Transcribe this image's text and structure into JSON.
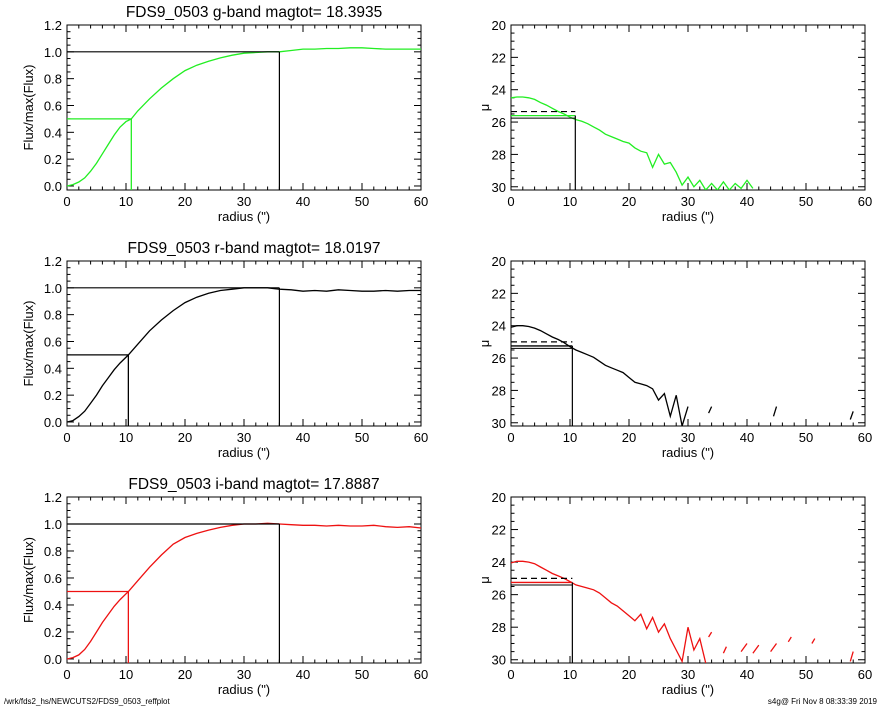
{
  "footer": {
    "path": "/wrk/fds2_hs/NEWCUTS2/FDS9_0503_reffplot",
    "stamp": "s4g@  Fri Nov  8 08:33:39 2019"
  },
  "chart_data": [
    {
      "type": "line",
      "panel": "growth-curve-g",
      "title": "FDS9_0503 g-band  magtot=      18.3935",
      "xlabel": "radius (\")",
      "ylabel": "Flux/max(Flux)",
      "xlim": [
        0,
        60
      ],
      "ylim": [
        -0.03,
        1.2
      ],
      "xticks": [
        0,
        10,
        20,
        30,
        40,
        50,
        60
      ],
      "yticks": [
        "0.0",
        "0.2",
        "0.4",
        "0.6",
        "0.8",
        "1.0",
        "1.2"
      ],
      "color": "#22ee22",
      "series": [
        {
          "x": [
            0,
            1,
            2,
            3,
            4,
            5,
            6,
            7,
            8,
            9,
            10,
            10.9,
            12,
            14,
            16,
            18,
            20,
            22,
            24,
            26,
            28,
            30,
            32,
            34,
            36,
            38,
            40,
            42,
            44,
            46,
            48,
            50,
            52,
            54,
            56,
            58,
            60
          ],
          "y": [
            0.0,
            0.01,
            0.03,
            0.06,
            0.11,
            0.17,
            0.24,
            0.31,
            0.38,
            0.44,
            0.48,
            0.5,
            0.56,
            0.65,
            0.73,
            0.8,
            0.86,
            0.9,
            0.93,
            0.955,
            0.975,
            0.99,
            0.995,
            1.0,
            1.0,
            1.01,
            1.02,
            1.02,
            1.025,
            1.025,
            1.03,
            1.03,
            1.025,
            1.02,
            1.02,
            1.02,
            1.02
          ]
        }
      ],
      "markers": {
        "half_radius": 10.9,
        "half_level": 0.5,
        "total_radius": 36.0,
        "total_level": 1.0
      }
    },
    {
      "type": "line",
      "panel": "sb-profile-g",
      "xlabel": "radius (\")",
      "ylabel": "μ",
      "xlim": [
        0,
        60
      ],
      "ylim": [
        30.2,
        20
      ],
      "xticks": [
        0,
        10,
        20,
        30,
        40,
        50,
        60
      ],
      "yticks": [
        "20",
        "22",
        "24",
        "26",
        "28",
        "30"
      ],
      "color": "#22ee22",
      "series": [
        {
          "x": [
            0,
            1,
            2,
            3,
            4,
            5,
            6,
            7,
            8,
            9,
            10,
            11,
            12,
            13,
            14,
            15,
            16,
            17,
            18,
            19,
            20,
            21,
            22,
            23,
            24,
            25,
            26,
            27,
            28,
            29,
            30,
            31,
            32,
            33,
            34,
            35,
            36,
            37,
            38,
            39,
            40,
            41
          ],
          "y": [
            24.5,
            24.45,
            24.45,
            24.5,
            24.6,
            24.8,
            24.95,
            25.15,
            25.35,
            25.5,
            25.7,
            25.85,
            25.95,
            26.1,
            26.3,
            26.5,
            26.75,
            26.9,
            27.05,
            27.2,
            27.3,
            27.6,
            27.8,
            27.9,
            28.8,
            28.0,
            28.6,
            28.5,
            29.1,
            29.9,
            29.4,
            30.0,
            29.6,
            30.2,
            29.8,
            30.2,
            29.7,
            30.2,
            29.8,
            30.1,
            29.6,
            30.1
          ]
        }
      ],
      "markers": {
        "half_radius": 10.9,
        "half_mu": 25.6,
        "dashed_mu": 25.35
      }
    },
    {
      "type": "line",
      "panel": "growth-curve-r",
      "title": "FDS9_0503 r-band  magtot=      18.0197",
      "xlabel": "radius (\")",
      "ylabel": "Flux/max(Flux)",
      "xlim": [
        0,
        60
      ],
      "ylim": [
        -0.03,
        1.2
      ],
      "xticks": [
        0,
        10,
        20,
        30,
        40,
        50,
        60
      ],
      "yticks": [
        "0.0",
        "0.2",
        "0.4",
        "0.6",
        "0.8",
        "1.0",
        "1.2"
      ],
      "color": "#000000",
      "series": [
        {
          "x": [
            0,
            1,
            2,
            3,
            4,
            5,
            6,
            7,
            8,
            9,
            10.4,
            12,
            14,
            16,
            18,
            20,
            22,
            24,
            26,
            28,
            30,
            32,
            34,
            36,
            38,
            40,
            42,
            44,
            46,
            48,
            50,
            52,
            54,
            56,
            58,
            60
          ],
          "y": [
            0.0,
            0.01,
            0.04,
            0.08,
            0.14,
            0.2,
            0.27,
            0.33,
            0.39,
            0.44,
            0.5,
            0.58,
            0.68,
            0.76,
            0.83,
            0.89,
            0.93,
            0.96,
            0.98,
            0.99,
            1.0,
            1.0,
            1.0,
            0.99,
            0.985,
            0.975,
            0.98,
            0.975,
            0.985,
            0.98,
            0.975,
            0.975,
            0.98,
            0.975,
            0.98,
            0.98
          ]
        }
      ],
      "markers": {
        "half_radius": 10.4,
        "half_level": 0.5,
        "total_radius": 36.0,
        "total_level": 1.0
      }
    },
    {
      "type": "line",
      "panel": "sb-profile-r",
      "xlabel": "radius (\")",
      "ylabel": "μ",
      "xlim": [
        0,
        60
      ],
      "ylim": [
        30.2,
        20
      ],
      "xticks": [
        0,
        10,
        20,
        30,
        40,
        50,
        60
      ],
      "yticks": [
        "20",
        "22",
        "24",
        "26",
        "28",
        "30"
      ],
      "color": "#000000",
      "series": [
        {
          "x": [
            0,
            1,
            2,
            3,
            4,
            5,
            6,
            7,
            8,
            9,
            10,
            11,
            12,
            13,
            14,
            15,
            16,
            17,
            18,
            19,
            20,
            21,
            22,
            23,
            24,
            25,
            26,
            27,
            28,
            29,
            30
          ],
          "y": [
            24.1,
            24.0,
            24.0,
            24.05,
            24.15,
            24.3,
            24.5,
            24.7,
            24.85,
            25.05,
            25.3,
            25.5,
            25.65,
            25.8,
            25.95,
            26.2,
            26.45,
            26.6,
            26.75,
            26.9,
            27.2,
            27.5,
            27.6,
            27.7,
            27.9,
            28.6,
            28.2,
            29.6,
            28.3,
            30.2,
            29.0
          ]
        },
        {
          "x": [
            33.5,
            34,
            44.5,
            45,
            57.5,
            58
          ],
          "y": [
            29.4,
            29.0,
            29.6,
            29.0,
            29.8,
            29.3
          ]
        }
      ],
      "markers": {
        "half_radius": 10.4,
        "half_mu": 25.25,
        "dashed_mu": 25.0
      }
    },
    {
      "type": "line",
      "panel": "growth-curve-i",
      "title": "FDS9_0503 i-band  magtot=      17.8887",
      "xlabel": "radius (\")",
      "ylabel": "Flux/max(Flux)",
      "xlim": [
        0,
        60
      ],
      "ylim": [
        -0.03,
        1.2
      ],
      "xticks": [
        0,
        10,
        20,
        30,
        40,
        50,
        60
      ],
      "yticks": [
        "0.0",
        "0.2",
        "0.4",
        "0.6",
        "0.8",
        "1.0",
        "1.2"
      ],
      "color": "#ee1111",
      "series": [
        {
          "x": [
            0,
            1,
            2,
            3,
            4,
            5,
            6,
            7,
            8,
            9,
            10.4,
            12,
            14,
            16,
            18,
            20,
            22,
            24,
            26,
            28,
            30,
            32,
            34,
            36,
            38,
            40,
            42,
            44,
            46,
            48,
            50,
            52,
            54,
            56,
            58,
            60
          ],
          "y": [
            0.0,
            0.01,
            0.03,
            0.07,
            0.13,
            0.2,
            0.27,
            0.33,
            0.39,
            0.44,
            0.5,
            0.58,
            0.68,
            0.77,
            0.85,
            0.9,
            0.93,
            0.955,
            0.975,
            0.99,
            1.0,
            1.0,
            1.005,
            1.0,
            0.995,
            0.99,
            0.99,
            0.985,
            0.99,
            0.985,
            0.985,
            0.99,
            0.98,
            0.975,
            0.98,
            0.97
          ]
        }
      ],
      "markers": {
        "half_radius": 10.4,
        "half_level": 0.5,
        "total_radius": 36.0,
        "total_level": 1.0
      }
    },
    {
      "type": "line",
      "panel": "sb-profile-i",
      "xlabel": "radius (\")",
      "ylabel": "μ",
      "xlim": [
        0,
        60
      ],
      "ylim": [
        30.2,
        20
      ],
      "xticks": [
        0,
        10,
        20,
        30,
        40,
        50,
        60
      ],
      "yticks": [
        "20",
        "22",
        "24",
        "26",
        "28",
        "30"
      ],
      "color": "#ee1111",
      "series": [
        {
          "x": [
            0,
            1,
            2,
            3,
            4,
            5,
            6,
            7,
            8,
            9,
            10,
            11,
            12,
            13,
            14,
            15,
            16,
            17,
            18,
            19,
            20,
            21,
            22,
            23,
            24,
            25,
            26,
            27,
            28,
            29,
            30,
            31,
            32,
            33
          ],
          "y": [
            24.05,
            23.95,
            23.95,
            24.0,
            24.1,
            24.3,
            24.5,
            24.7,
            24.85,
            25.0,
            25.2,
            25.4,
            25.5,
            25.6,
            25.7,
            25.9,
            26.2,
            26.5,
            26.7,
            27.0,
            27.3,
            27.6,
            27.2,
            28.1,
            27.4,
            28.3,
            27.8,
            28.7,
            29.4,
            30.1,
            28.0,
            29.4,
            28.7,
            30.2
          ]
        },
        {
          "x": [
            33.5,
            34,
            36,
            36.5,
            39,
            40,
            41,
            42,
            44,
            45,
            47,
            47.5,
            51,
            51.5,
            57.5,
            58
          ],
          "y": [
            28.6,
            28.3,
            29.6,
            29.2,
            29.5,
            29.0,
            29.6,
            29.1,
            29.5,
            29.0,
            28.9,
            28.6,
            29.0,
            28.7,
            30.1,
            29.5
          ]
        }
      ],
      "markers": {
        "half_radius": 10.4,
        "half_mu": 25.25,
        "dashed_mu": 25.0
      }
    }
  ]
}
